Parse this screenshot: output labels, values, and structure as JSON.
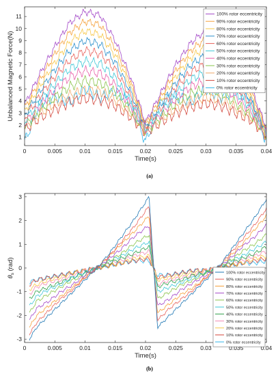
{
  "figure": {
    "caption_a": "(a)",
    "caption_b": "(b)"
  },
  "chart_data": [
    {
      "type": "line",
      "panel": "(a)",
      "xlabel": "Time(s)",
      "ylabel": "Unbalanced Magnetic Force(N)",
      "xlim": [
        0,
        0.04
      ],
      "ylim": [
        0.3,
        11.8
      ],
      "xticks": [
        0,
        0.005,
        0.01,
        0.015,
        0.02,
        0.025,
        0.03,
        0.035,
        0.04
      ],
      "xtick_labels": [
        "0",
        "0.005",
        "0.01",
        "0.015",
        "0.02",
        "0.025",
        "0.03",
        "0.035",
        "0.04"
      ],
      "yticks": [
        1,
        2,
        3,
        4,
        5,
        6,
        7,
        8,
        9,
        10,
        11
      ],
      "ytick_labels": [
        "1",
        "2",
        "3",
        "4",
        "5",
        "6",
        "7",
        "8",
        "9",
        "10",
        "11"
      ],
      "legend_position": "top-right",
      "x": [
        0,
        0.0025,
        0.005,
        0.0075,
        0.01,
        0.0125,
        0.015,
        0.0175,
        0.02,
        0.0225,
        0.025,
        0.0275,
        0.03,
        0.0325,
        0.035,
        0.0375,
        0.04
      ],
      "series": [
        {
          "name": "100% rotor eccentricity",
          "color": "#A347C7",
          "values": [
            3.7,
            6.2,
            8.5,
            10.5,
            11.4,
            11.1,
            9.0,
            6.0,
            2.2,
            4.6,
            7.0,
            8.8,
            9.9,
            8.9,
            7.2,
            5.0,
            1.8
          ]
        },
        {
          "name": "90% rotor eccentricity",
          "color": "#F5A03A",
          "values": [
            3.4,
            5.7,
            7.9,
            9.7,
            10.6,
            10.3,
            8.4,
            5.6,
            2.1,
            4.3,
            6.5,
            8.2,
            9.2,
            8.3,
            6.7,
            4.7,
            1.7
          ]
        },
        {
          "name": "80% rotor eccentricity",
          "color": "#F7C84A",
          "values": [
            3.1,
            5.2,
            7.2,
            8.9,
            9.8,
            9.5,
            7.8,
            5.2,
            2.0,
            4.0,
            6.0,
            7.6,
            8.5,
            7.7,
            6.2,
            4.3,
            1.6
          ]
        },
        {
          "name": "70% rotor eccentricity",
          "color": "#2A8FCB",
          "values": [
            2.8,
            4.8,
            6.6,
            8.2,
            9.0,
            8.7,
            7.2,
            4.8,
            1.9,
            3.7,
            5.5,
            7.0,
            7.8,
            7.1,
            5.7,
            4.0,
            1.5
          ]
        },
        {
          "name": "60% rotor eccentricity",
          "color": "#E8615A",
          "values": [
            2.6,
            4.4,
            6.0,
            7.4,
            8.2,
            7.9,
            6.6,
            4.4,
            1.8,
            3.4,
            5.1,
            6.4,
            7.1,
            6.5,
            5.2,
            3.7,
            1.4
          ]
        },
        {
          "name": "50% rotor eccentricity",
          "color": "#3FC6D6",
          "values": [
            2.3,
            4.0,
            5.4,
            6.7,
            7.3,
            7.1,
            5.9,
            4.0,
            1.7,
            3.1,
            4.6,
            5.8,
            6.4,
            5.9,
            4.7,
            3.4,
            1.3
          ]
        },
        {
          "name": "40% rotor eccentricity",
          "color": "#E85FA8",
          "values": [
            2.1,
            3.6,
            4.9,
            6.0,
            6.5,
            6.3,
            5.3,
            3.7,
            1.6,
            2.9,
            4.2,
            5.2,
            5.7,
            5.3,
            4.3,
            3.1,
            1.3
          ]
        },
        {
          "name": "30% rotor eccentricity",
          "color": "#8AC44B",
          "values": [
            1.9,
            3.2,
            4.3,
            5.2,
            5.7,
            5.5,
            4.7,
            3.3,
            1.5,
            2.6,
            3.8,
            4.6,
            5.0,
            4.7,
            3.8,
            2.8,
            1.2
          ]
        },
        {
          "name": "20% rotor eccentricity",
          "color": "#F0A868",
          "values": [
            1.8,
            2.9,
            3.8,
            4.5,
            4.9,
            4.8,
            4.1,
            3.0,
            1.5,
            2.4,
            3.4,
            4.0,
            4.3,
            4.1,
            3.4,
            2.6,
            1.2
          ]
        },
        {
          "name": "10% rotor eccentricity",
          "color": "#D2453A",
          "values": [
            1.6,
            2.6,
            3.3,
            3.9,
            4.2,
            4.1,
            3.6,
            2.7,
            1.4,
            2.2,
            3.0,
            3.5,
            3.8,
            3.6,
            3.0,
            2.4,
            1.1
          ]
        },
        {
          "name": "0% rotor eccentricity",
          "color": "#31B5E8",
          "values": [
            0.6,
            3.8,
            4.4,
            3.9,
            5.0,
            4.3,
            4.8,
            3.9,
            0.6,
            3.8,
            4.4,
            3.9,
            5.0,
            4.3,
            4.8,
            3.9,
            0.6
          ]
        }
      ]
    },
    {
      "type": "line",
      "panel": "(b)",
      "xlabel": "Time(s)",
      "ylabel": "θ_s (rad)",
      "xlim": [
        0,
        0.04
      ],
      "ylim": [
        -3.14,
        3.14
      ],
      "xticks": [
        0,
        0.005,
        0.01,
        0.015,
        0.02,
        0.025,
        0.03,
        0.035,
        0.04
      ],
      "xtick_labels": [
        "0",
        "0.005",
        "0.01",
        "0.015",
        "0.02",
        "0.025",
        "0.03",
        "0.035",
        "0.04"
      ],
      "yticks": [
        -3,
        -2,
        -1,
        0,
        1,
        2,
        3
      ],
      "ytick_labels": [
        "-3",
        "-2",
        "-1",
        "0",
        "1",
        "2",
        "3"
      ],
      "legend_position": "bottom-right",
      "x": [
        0.0008,
        0.002,
        0.004,
        0.006,
        0.008,
        0.01,
        0.012,
        0.014,
        0.016,
        0.018,
        0.0206,
        0.022,
        0.024,
        0.026,
        0.028,
        0.03,
        0.032,
        0.034,
        0.036,
        0.038,
        0.04
      ],
      "series": [
        {
          "name": "100% rotor eccentricity",
          "color": "#1F77B4",
          "values": [
            -3.0,
            -2.5,
            -2.0,
            -1.5,
            -1.0,
            -0.5,
            0.0,
            0.6,
            1.3,
            2.0,
            3.0,
            -2.5,
            -2.0,
            -1.5,
            -1.0,
            -0.5,
            0.0,
            0.7,
            1.4,
            2.1,
            2.9
          ]
        },
        {
          "name": "90% rotor eccentricity",
          "color": "#E8615A",
          "values": [
            -2.8,
            -2.3,
            -1.8,
            -1.3,
            -0.9,
            -0.4,
            0.0,
            0.5,
            1.1,
            1.7,
            2.6,
            -2.2,
            -1.7,
            -1.3,
            -0.9,
            -0.4,
            0.0,
            0.6,
            1.2,
            1.8,
            2.5
          ]
        },
        {
          "name": "80% rotor eccentricity",
          "color": "#F5A03A",
          "values": [
            -2.5,
            -2.0,
            -1.6,
            -1.2,
            -0.8,
            -0.4,
            0.0,
            0.5,
            1.0,
            1.5,
            2.2,
            -1.9,
            -1.5,
            -1.1,
            -0.8,
            -0.4,
            0.0,
            0.5,
            1.0,
            1.6,
            2.2
          ]
        },
        {
          "name": "70% rotor eccentricity",
          "color": "#A347C7",
          "values": [
            -2.2,
            -1.7,
            -1.4,
            -1.0,
            -0.7,
            -0.3,
            0.0,
            0.4,
            0.8,
            1.3,
            1.8,
            -1.6,
            -1.3,
            -0.9,
            -0.6,
            -0.3,
            0.0,
            0.4,
            0.9,
            1.3,
            1.8
          ]
        },
        {
          "name": "60% rotor eccentricity",
          "color": "#8AC44B",
          "values": [
            -1.9,
            -1.4,
            -1.1,
            -0.8,
            -0.5,
            -0.3,
            0.0,
            0.3,
            0.6,
            1.0,
            1.4,
            -1.3,
            -1.0,
            -0.7,
            -0.5,
            -0.2,
            0.0,
            0.3,
            0.7,
            1.0,
            1.4
          ]
        },
        {
          "name": "50% rotor eccentricity",
          "color": "#3FC6D6",
          "values": [
            -1.6,
            -1.2,
            -0.9,
            -0.7,
            -0.4,
            -0.2,
            0.0,
            0.3,
            0.5,
            0.8,
            1.1,
            -1.0,
            -0.8,
            -0.6,
            -0.4,
            -0.2,
            0.0,
            0.3,
            0.5,
            0.8,
            1.1
          ]
        },
        {
          "name": "40% rotor eccentricity",
          "color": "#2E9E48",
          "values": [
            -1.3,
            -1.0,
            -0.8,
            -0.6,
            -0.4,
            -0.2,
            0.0,
            0.2,
            0.4,
            0.6,
            0.9,
            -0.8,
            -0.6,
            -0.5,
            -0.3,
            -0.2,
            0.0,
            0.2,
            0.4,
            0.6,
            0.9
          ]
        },
        {
          "name": "30% rotor eccentricity",
          "color": "#F28CB5",
          "values": [
            -1.1,
            -0.8,
            -0.6,
            -0.5,
            -0.3,
            -0.1,
            0.0,
            0.2,
            0.3,
            0.5,
            0.7,
            -0.7,
            -0.5,
            -0.4,
            -0.3,
            -0.1,
            0.0,
            0.2,
            0.3,
            0.5,
            0.7
          ]
        },
        {
          "name": "20% rotor eccentricity",
          "color": "#F7C84A",
          "values": [
            -0.9,
            -0.7,
            -0.5,
            -0.4,
            -0.2,
            -0.1,
            0.0,
            0.1,
            0.2,
            0.4,
            0.5,
            -0.5,
            -0.4,
            -0.3,
            -0.2,
            -0.1,
            0.0,
            0.1,
            0.2,
            0.4,
            0.5
          ]
        },
        {
          "name": "10% rotor eccentricity",
          "color": "#D2453A",
          "values": [
            -0.7,
            -0.5,
            -0.4,
            -0.3,
            -0.2,
            -0.1,
            0.0,
            0.1,
            0.2,
            0.3,
            0.4,
            -0.4,
            -0.3,
            -0.2,
            -0.1,
            -0.1,
            0.0,
            0.1,
            0.2,
            0.3,
            0.4
          ]
        },
        {
          "name": "0% rotor eccentricity",
          "color": "#31B5E8",
          "values": [
            -0.6,
            -0.5,
            -0.4,
            -0.3,
            -0.2,
            -0.1,
            0.0,
            0.1,
            0.2,
            0.3,
            0.3,
            -0.3,
            -0.3,
            -0.2,
            -0.1,
            -0.1,
            0.0,
            0.1,
            0.2,
            0.2,
            0.3
          ]
        }
      ]
    }
  ]
}
